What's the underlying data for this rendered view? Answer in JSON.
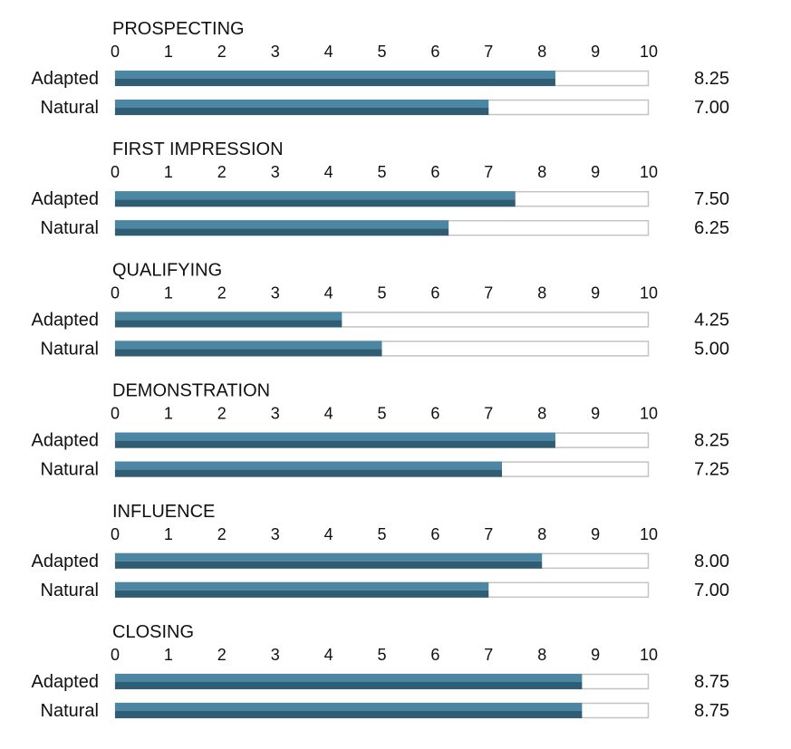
{
  "chart_data": {
    "type": "bar",
    "orientation": "horizontal",
    "xlim": [
      0,
      10
    ],
    "ticks": [
      "0",
      "1",
      "2",
      "3",
      "4",
      "5",
      "6",
      "7",
      "8",
      "9",
      "10"
    ],
    "row_labels": [
      "Adapted",
      "Natural"
    ],
    "groups": [
      {
        "title": "PROSPECTING",
        "bars": [
          {
            "label": "Adapted",
            "value": 8.25,
            "display": "8.25"
          },
          {
            "label": "Natural",
            "value": 7.0,
            "display": "7.00"
          }
        ]
      },
      {
        "title": "FIRST IMPRESSION",
        "bars": [
          {
            "label": "Adapted",
            "value": 7.5,
            "display": "7.50"
          },
          {
            "label": "Natural",
            "value": 6.25,
            "display": "6.25"
          }
        ]
      },
      {
        "title": "QUALIFYING",
        "bars": [
          {
            "label": "Adapted",
            "value": 4.25,
            "display": "4.25"
          },
          {
            "label": "Natural",
            "value": 5.0,
            "display": "5.00"
          }
        ]
      },
      {
        "title": "DEMONSTRATION",
        "bars": [
          {
            "label": "Adapted",
            "value": 8.25,
            "display": "8.25"
          },
          {
            "label": "Natural",
            "value": 7.25,
            "display": "7.25"
          }
        ]
      },
      {
        "title": "INFLUENCE",
        "bars": [
          {
            "label": "Adapted",
            "value": 8.0,
            "display": "8.00"
          },
          {
            "label": "Natural",
            "value": 7.0,
            "display": "7.00"
          }
        ]
      },
      {
        "title": "CLOSING",
        "bars": [
          {
            "label": "Adapted",
            "value": 8.75,
            "display": "8.75"
          },
          {
            "label": "Natural",
            "value": 8.75,
            "display": "8.75"
          }
        ]
      }
    ],
    "colors": {
      "bar_top": "#4b86a2",
      "bar_bottom": "#2f5d73",
      "track_border": "#c4c4c4",
      "track_fill": "#ffffff",
      "text": "#111111"
    }
  }
}
